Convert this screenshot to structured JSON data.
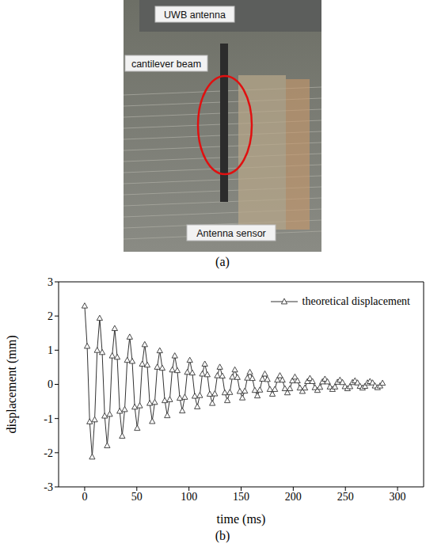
{
  "photo": {
    "labels": [
      "UWB antenna",
      "cantilever beam",
      "Antenna sensor"
    ],
    "caption": "(a)"
  },
  "chart_data": {
    "type": "line",
    "caption": "(b)",
    "x_label": "time (ms)",
    "y_label": "displacement (mm)",
    "xlim": [
      -25,
      325
    ],
    "xticks": [
      0,
      50,
      100,
      150,
      200,
      250,
      300
    ],
    "ylim": [
      -3,
      3
    ],
    "yticks": [
      -3,
      -2,
      -1,
      0,
      1,
      2,
      3
    ],
    "grid": false,
    "legend": "upper right",
    "x": [
      0,
      2.4,
      4.8,
      7.2,
      9.6,
      12,
      14.4,
      16.8,
      19.2,
      21.6,
      24,
      26.4,
      28.8,
      31.2,
      33.6,
      36,
      38.4,
      40.8,
      43.2,
      45.6,
      48,
      50.4,
      52.8,
      55.2,
      57.6,
      60,
      62.4,
      64.8,
      67.2,
      69.6,
      72,
      74.4,
      76.8,
      79.2,
      81.6,
      84,
      86.4,
      88.8,
      91.2,
      93.6,
      96,
      98.4,
      100.8,
      103.2,
      105.6,
      108,
      110.4,
      112.8,
      115.2,
      117.6,
      120,
      122.4,
      124.8,
      127.2,
      129.6,
      132,
      134.4,
      136.8,
      139.2,
      141.6,
      144,
      146.4,
      148.8,
      151.2,
      153.6,
      156,
      158.4,
      160.8,
      163.2,
      165.6,
      168,
      170.4,
      172.8,
      175.2,
      177.6,
      180,
      182.4,
      184.8,
      187.2,
      189.6,
      192,
      194.4,
      196.8,
      199.2,
      201.6,
      204,
      206.4,
      208.8,
      211.2,
      213.6,
      216,
      218.4,
      220.8,
      223.2,
      225.6,
      228,
      230.4,
      232.8,
      235.2,
      237.6,
      240,
      242.4,
      244.8,
      247.2,
      249.6,
      252,
      254.4,
      256.8,
      259.2,
      261.6,
      264,
      266.4,
      268.8,
      271.2,
      273.6,
      276,
      278.4,
      280.8,
      283.2,
      285.6
    ],
    "series": [
      {
        "name": "theoretical displacement",
        "color": "#333333",
        "marker": "triangle",
        "line_style": "solid",
        "values": [
          2.3,
          1.12,
          -1.09,
          -2.12,
          -1.03,
          1.0,
          1.94,
          0.94,
          -0.92,
          -1.79,
          -0.87,
          0.84,
          1.64,
          0.8,
          -0.78,
          -1.51,
          -0.73,
          0.71,
          1.39,
          0.68,
          -0.66,
          -1.28,
          -0.62,
          0.6,
          1.17,
          0.57,
          -0.55,
          -1.08,
          -0.52,
          0.51,
          0.99,
          0.48,
          -0.47,
          -0.91,
          -0.44,
          0.43,
          0.84,
          0.41,
          -0.4,
          -0.77,
          -0.37,
          0.36,
          0.71,
          0.34,
          -0.34,
          -0.65,
          -0.32,
          0.31,
          0.6,
          0.29,
          -0.28,
          -0.55,
          -0.27,
          0.26,
          0.51,
          0.25,
          -0.24,
          -0.47,
          -0.23,
          0.22,
          0.43,
          0.21,
          -0.2,
          -0.39,
          -0.19,
          0.19,
          0.36,
          0.18,
          -0.17,
          -0.33,
          -0.16,
          0.16,
          0.31,
          0.15,
          -0.14,
          -0.28,
          -0.14,
          0.13,
          0.26,
          0.13,
          -0.12,
          -0.24,
          -0.12,
          0.11,
          0.22,
          0.11,
          -0.1,
          -0.2,
          -0.1,
          0.09,
          0.18,
          0.09,
          -0.09,
          -0.17,
          -0.08,
          0.08,
          0.16,
          0.08,
          -0.07,
          -0.14,
          -0.07,
          0.07,
          0.13,
          0.06,
          -0.06,
          -0.12,
          -0.06,
          0.06,
          0.11,
          0.05,
          -0.05,
          -0.1,
          -0.05,
          0.05,
          0.09,
          0.05,
          -0.04,
          -0.09,
          -0.04,
          0.04
        ]
      }
    ]
  }
}
